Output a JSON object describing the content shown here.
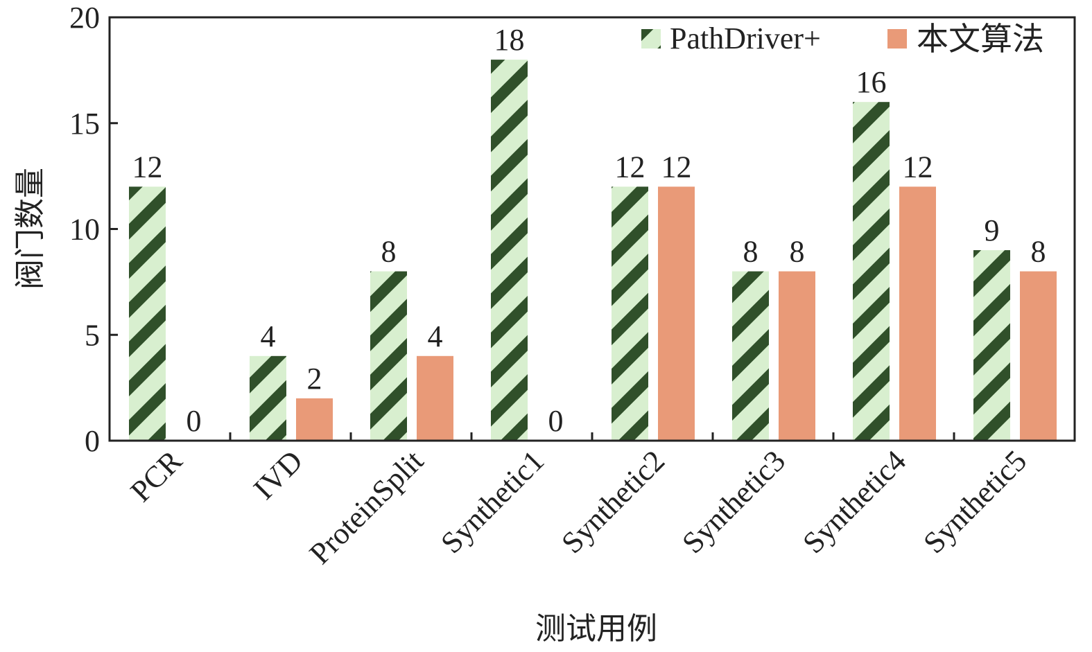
{
  "chart_data": {
    "type": "bar",
    "title": "",
    "xlabel": "测试用例",
    "ylabel": "阀门数量",
    "ylim": [
      0,
      20
    ],
    "yticks": [
      0,
      5,
      10,
      15,
      20
    ],
    "grid": false,
    "legend_position": "top-right",
    "categories": [
      "PCR",
      "IVD",
      "ProteinSplit",
      "Synthetic1",
      "Synthetic2",
      "Synthetic3",
      "Synthetic4",
      "Synthetic5"
    ],
    "series": [
      {
        "name": "PathDriver+",
        "values": [
          12,
          4,
          8,
          18,
          12,
          8,
          16,
          9
        ],
        "color": "#d8efcf",
        "hatch_color": "#30502a",
        "hatch": "diagonal"
      },
      {
        "name": "本文算法",
        "values": [
          0,
          2,
          4,
          0,
          12,
          8,
          12,
          8
        ],
        "color": "#e99a78"
      }
    ]
  }
}
